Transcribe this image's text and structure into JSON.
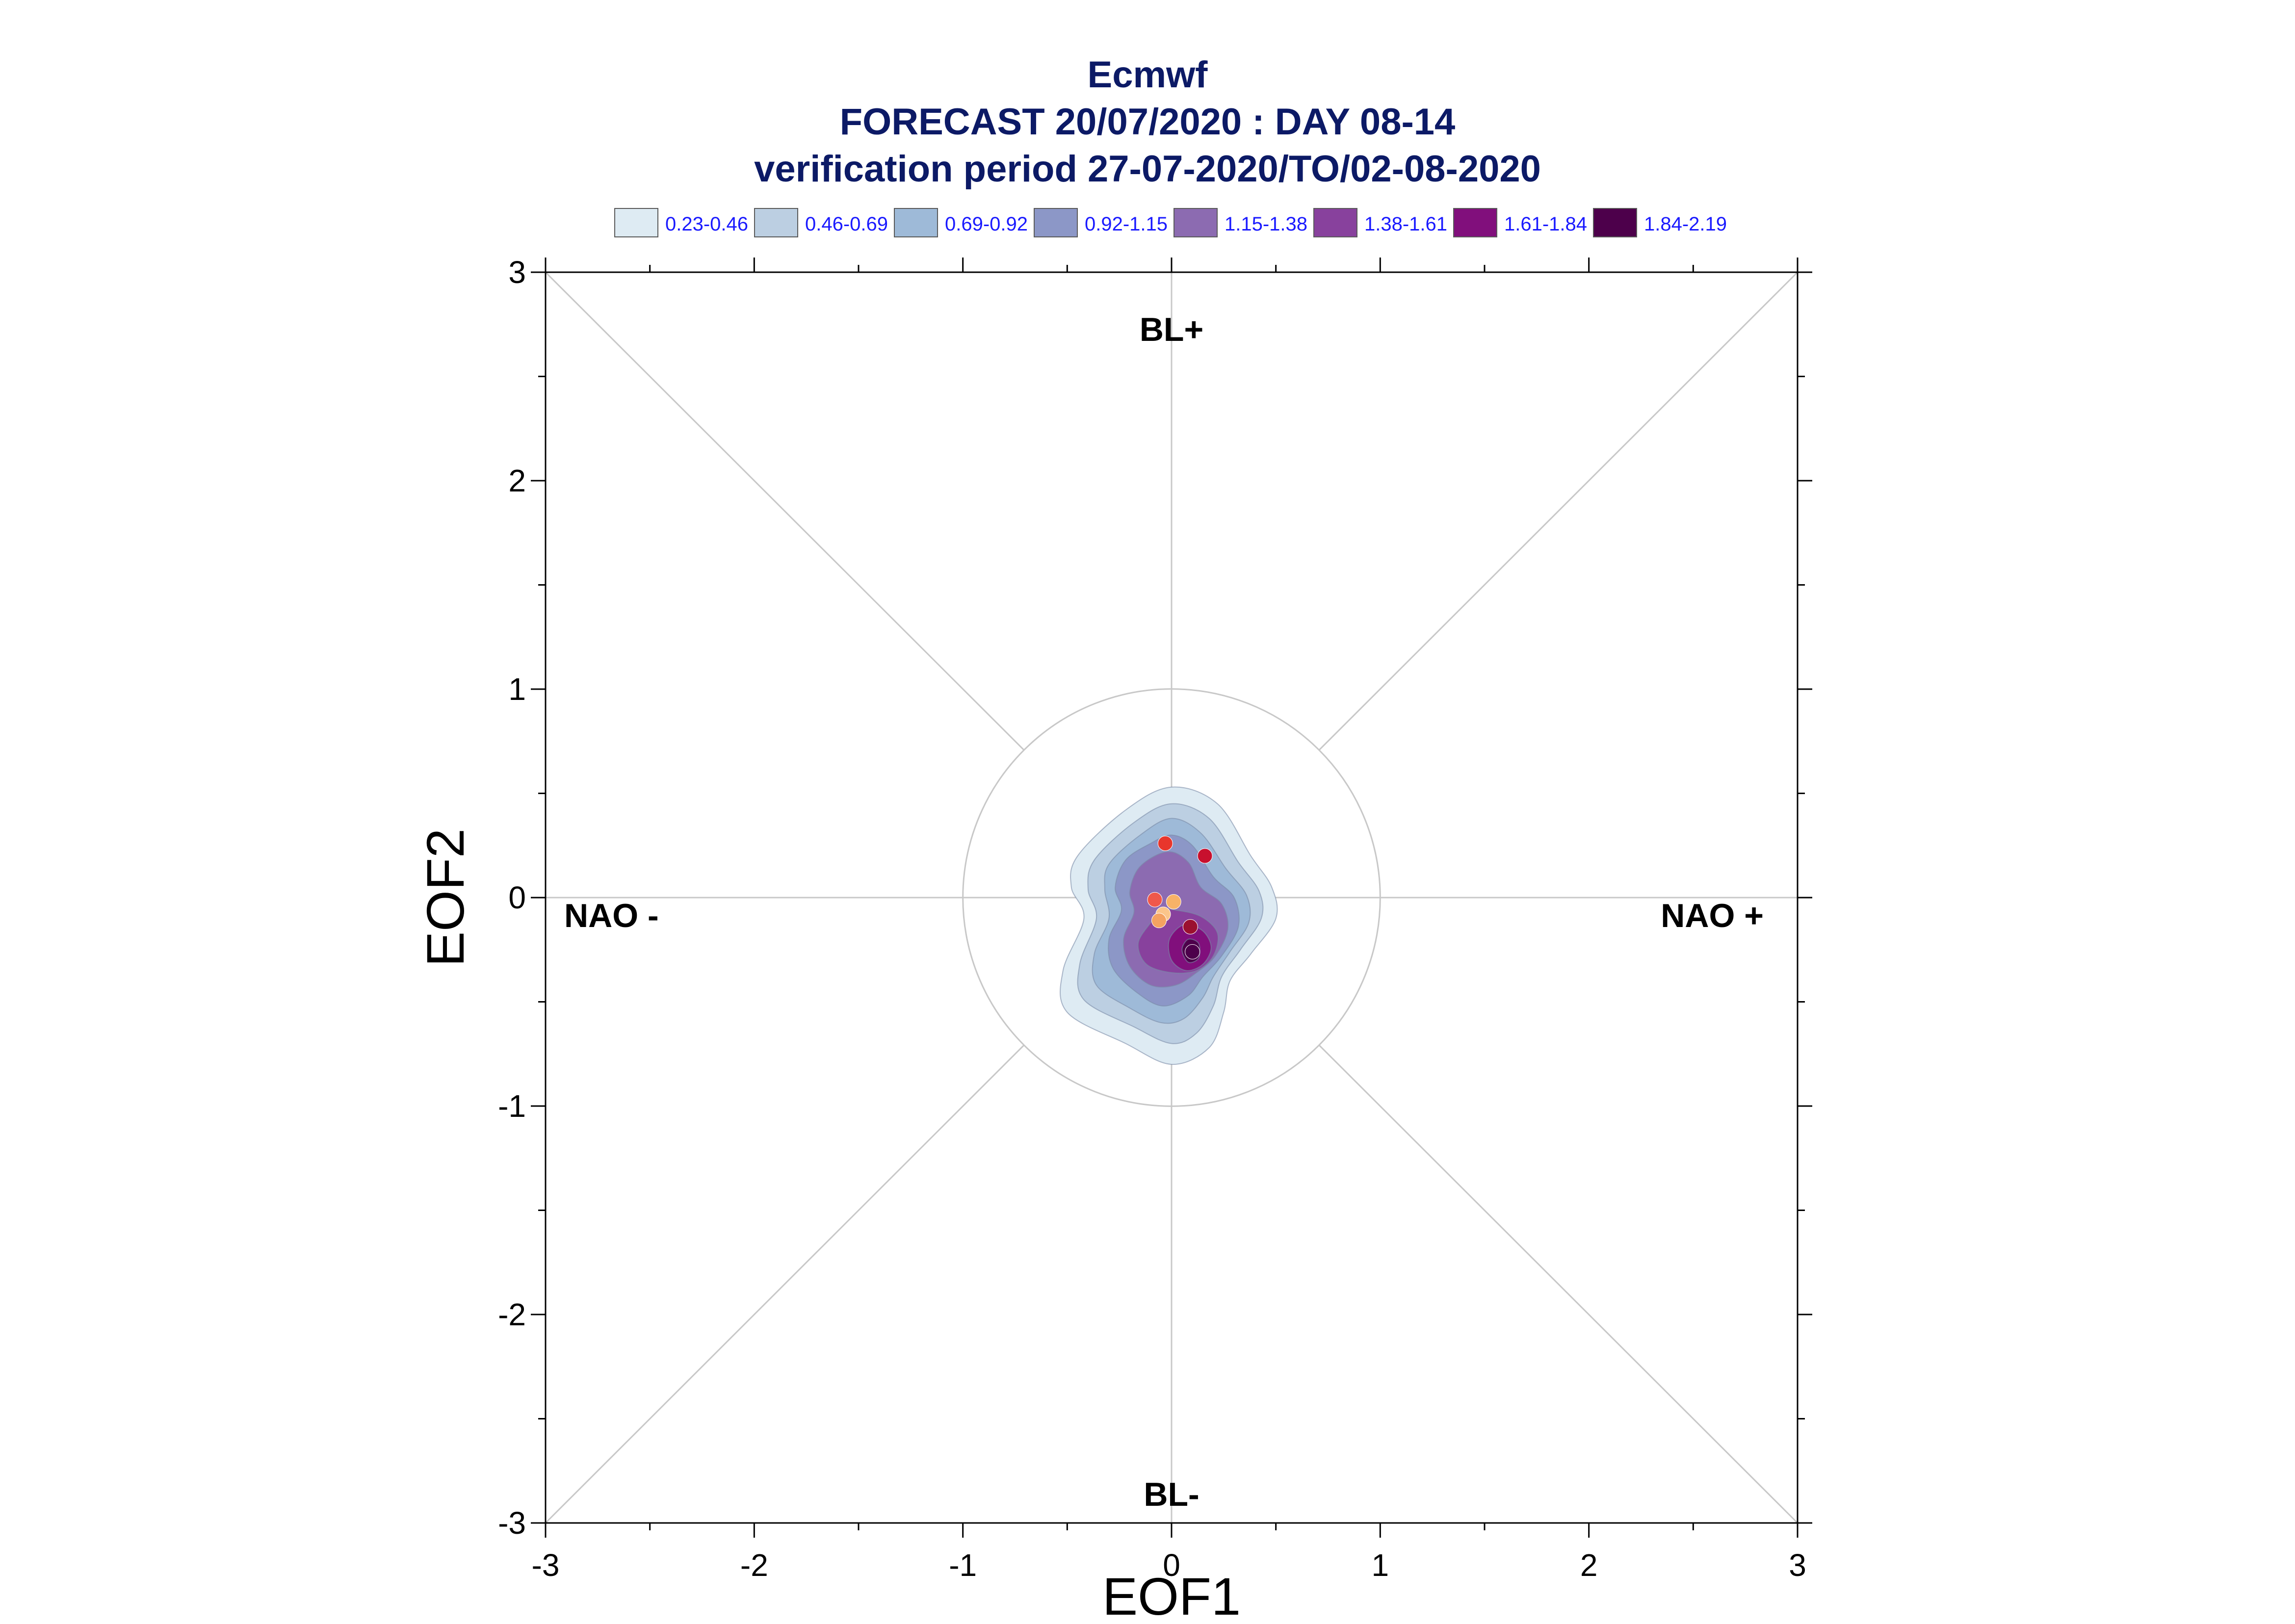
{
  "header": {
    "title": "Ecmwf",
    "subtitle": "FORECAST 20/07/2020 : DAY 08-14",
    "period": "verification period 27-07-2020/TO/02-08-2020"
  },
  "chart_data": {
    "type": "scatter",
    "xlabel": "EOF1",
    "ylabel": "EOF2",
    "xlim": [
      -3,
      3
    ],
    "ylim": [
      -3,
      3
    ],
    "x_ticks": [
      "-3",
      "-2",
      "-1",
      "0",
      "1",
      "2",
      "3"
    ],
    "y_ticks": [
      "3",
      "2",
      "1",
      "0",
      "-1",
      "-2",
      "-3"
    ],
    "regime_labels": {
      "top": "BL+",
      "bottom": "BL-",
      "left": "NAO -",
      "right": "NAO +"
    },
    "reference_circle_radius": 1,
    "legend": {
      "placement": "top",
      "items": [
        {
          "label": "0.23-0.46",
          "color": "#deebf3"
        },
        {
          "label": "0.46-0.69",
          "color": "#bccfe2"
        },
        {
          "label": "0.69-0.92",
          "color": "#9ebad8"
        },
        {
          "label": "0.92-1.15",
          "color": "#8c97c7"
        },
        {
          "label": "1.15-1.38",
          "color": "#8c6bb1"
        },
        {
          "label": "1.38-1.61",
          "color": "#88419d"
        },
        {
          "label": "1.61-1.84",
          "color": "#810f7c"
        },
        {
          "label": "1.84-2.19",
          "color": "#4d004b"
        }
      ]
    },
    "density_contours": [
      {
        "level": "0.23-0.46",
        "color": "#deebf3",
        "points": [
          [
            0.0,
            0.53
          ],
          [
            0.22,
            0.45
          ],
          [
            0.38,
            0.2
          ],
          [
            0.48,
            0.05
          ],
          [
            0.5,
            -0.1
          ],
          [
            0.38,
            -0.27
          ],
          [
            0.28,
            -0.4
          ],
          [
            0.25,
            -0.55
          ],
          [
            0.18,
            -0.72
          ],
          [
            0.0,
            -0.8
          ],
          [
            -0.22,
            -0.7
          ],
          [
            -0.5,
            -0.55
          ],
          [
            -0.52,
            -0.35
          ],
          [
            -0.42,
            -0.1
          ],
          [
            -0.48,
            0.05
          ],
          [
            -0.45,
            0.2
          ],
          [
            -0.22,
            0.42
          ]
        ]
      },
      {
        "level": "0.46-0.69",
        "color": "#bccfe2",
        "points": [
          [
            0.0,
            0.45
          ],
          [
            0.18,
            0.38
          ],
          [
            0.32,
            0.17
          ],
          [
            0.42,
            0.03
          ],
          [
            0.43,
            -0.1
          ],
          [
            0.33,
            -0.25
          ],
          [
            0.24,
            -0.38
          ],
          [
            0.2,
            -0.52
          ],
          [
            0.12,
            -0.65
          ],
          [
            0.0,
            -0.7
          ],
          [
            -0.18,
            -0.62
          ],
          [
            -0.42,
            -0.49
          ],
          [
            -0.44,
            -0.32
          ],
          [
            -0.36,
            -0.1
          ],
          [
            -0.4,
            0.04
          ],
          [
            -0.37,
            0.18
          ],
          [
            -0.18,
            0.36
          ]
        ]
      },
      {
        "level": "0.69-0.92",
        "color": "#9ebad8",
        "points": [
          [
            0.0,
            0.38
          ],
          [
            0.14,
            0.31
          ],
          [
            0.26,
            0.14
          ],
          [
            0.36,
            0.01
          ],
          [
            0.37,
            -0.12
          ],
          [
            0.28,
            -0.26
          ],
          [
            0.2,
            -0.38
          ],
          [
            0.15,
            -0.48
          ],
          [
            0.06,
            -0.58
          ],
          [
            -0.05,
            -0.6
          ],
          [
            -0.2,
            -0.53
          ],
          [
            -0.36,
            -0.42
          ],
          [
            -0.37,
            -0.27
          ],
          [
            -0.3,
            -0.1
          ],
          [
            -0.32,
            0.04
          ],
          [
            -0.3,
            0.16
          ],
          [
            -0.15,
            0.3
          ]
        ]
      },
      {
        "level": "0.92-1.15",
        "color": "#8c97c7",
        "points": [
          [
            0.0,
            0.3
          ],
          [
            0.1,
            0.25
          ],
          [
            0.2,
            0.1
          ],
          [
            0.3,
            0.0
          ],
          [
            0.32,
            -0.14
          ],
          [
            0.24,
            -0.28
          ],
          [
            0.15,
            -0.38
          ],
          [
            0.08,
            -0.47
          ],
          [
            -0.04,
            -0.52
          ],
          [
            -0.16,
            -0.46
          ],
          [
            -0.28,
            -0.34
          ],
          [
            -0.3,
            -0.2
          ],
          [
            -0.24,
            -0.06
          ],
          [
            -0.27,
            0.05
          ],
          [
            -0.22,
            0.18
          ],
          [
            -0.1,
            0.26
          ]
        ]
      },
      {
        "level": "1.15-1.38",
        "color": "#8c6bb1",
        "points": [
          [
            -0.02,
            0.22
          ],
          [
            0.08,
            0.17
          ],
          [
            0.14,
            0.05
          ],
          [
            0.24,
            -0.03
          ],
          [
            0.27,
            -0.15
          ],
          [
            0.21,
            -0.28
          ],
          [
            0.12,
            -0.36
          ],
          [
            0.02,
            -0.42
          ],
          [
            -0.1,
            -0.42
          ],
          [
            -0.2,
            -0.33
          ],
          [
            -0.23,
            -0.2
          ],
          [
            -0.18,
            -0.07
          ],
          [
            -0.2,
            0.03
          ],
          [
            -0.15,
            0.15
          ]
        ]
      },
      {
        "level": "1.38-1.61",
        "color": "#88419d",
        "points": [
          [
            0.02,
            -0.06
          ],
          [
            0.14,
            -0.09
          ],
          [
            0.22,
            -0.17
          ],
          [
            0.2,
            -0.28
          ],
          [
            0.12,
            -0.35
          ],
          [
            0.0,
            -0.36
          ],
          [
            -0.12,
            -0.32
          ],
          [
            -0.16,
            -0.22
          ],
          [
            -0.1,
            -0.12
          ],
          [
            -0.05,
            -0.06
          ]
        ]
      },
      {
        "level": "1.61-1.84",
        "color": "#810f7c",
        "points": [
          [
            0.06,
            -0.13
          ],
          [
            0.15,
            -0.16
          ],
          [
            0.19,
            -0.24
          ],
          [
            0.15,
            -0.32
          ],
          [
            0.07,
            -0.35
          ],
          [
            0.0,
            -0.3
          ],
          [
            -0.01,
            -0.2
          ]
        ]
      },
      {
        "level": "1.84-2.19",
        "color": "#4d004b",
        "points": [
          [
            0.08,
            -0.2
          ],
          [
            0.13,
            -0.22
          ],
          [
            0.13,
            -0.29
          ],
          [
            0.08,
            -0.31
          ],
          [
            0.05,
            -0.25
          ]
        ]
      }
    ],
    "points": [
      {
        "x": -0.03,
        "y": 0.26,
        "color": "#e8362c"
      },
      {
        "x": 0.16,
        "y": 0.2,
        "color": "#c8102e"
      },
      {
        "x": -0.08,
        "y": -0.01,
        "color": "#f0584a"
      },
      {
        "x": 0.01,
        "y": -0.02,
        "color": "#f7b267"
      },
      {
        "x": -0.04,
        "y": -0.08,
        "color": "#fbc58a"
      },
      {
        "x": -0.06,
        "y": -0.11,
        "color": "#f4a261"
      },
      {
        "x": 0.09,
        "y": -0.14,
        "color": "#9b1030"
      },
      {
        "x": 0.1,
        "y": -0.26,
        "color": "#4d004b"
      }
    ]
  }
}
